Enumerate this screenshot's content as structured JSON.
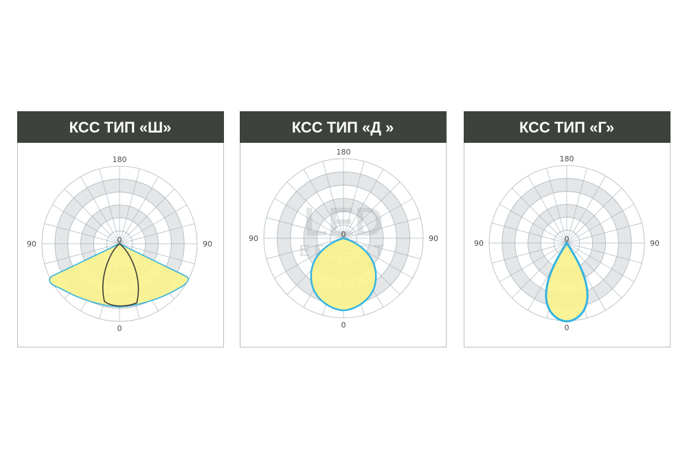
{
  "panels": [
    {
      "title": "КСС ТИП «Ш»",
      "label_top": "180",
      "label_left": "90",
      "label_right": "90",
      "label_center": "0",
      "label_bottom": "0"
    },
    {
      "title": "КСС ТИП «Д »",
      "label_top": "180",
      "label_left": "90",
      "label_right": "90",
      "label_center": "0",
      "label_bottom": "0"
    },
    {
      "title": "КСС ТИП «Г»",
      "label_top": "180",
      "label_left": "90",
      "label_right": "90",
      "label_center": "0",
      "label_bottom": "0"
    }
  ],
  "watermark": {
    "line1": "LED",
    "line2": "EFFECT"
  }
}
